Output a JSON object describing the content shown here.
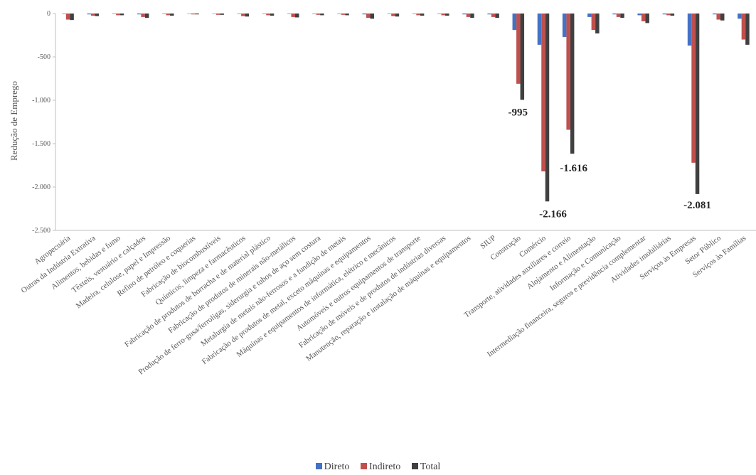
{
  "chart_data": {
    "type": "bar",
    "title": "",
    "xlabel": "",
    "ylabel": "Redução de Emprego",
    "ylim": [
      -2500,
      0
    ],
    "yticks": [
      0,
      -500,
      -1000,
      -1500,
      -2000,
      -2500
    ],
    "ytick_labels": [
      "0",
      "-500",
      "-1.000",
      "-1.500",
      "-2.000",
      "-2.500"
    ],
    "grid": false,
    "legend_position": "bottom",
    "categories": [
      "Agropecuária",
      "Outras da Indústria Extrativa",
      "Alimentos, bebidas e fumo",
      "Têxteis, vestuário e calçados",
      "Madeira, celulose, papel e Impressão",
      "Refino de petróleo e coquerias",
      "Fabricação de biocombustíveis",
      "Químicos, limpeza e farmacêuticos",
      "Fabricação de produtos de borracha e de material plástico",
      "Fabricação de produtos de minerais não-metálicos",
      "Produção de ferro-gusa/ferroligas, siderurgia e tubos de aço sem costura",
      "Metalurgia de metais não-ferrosos e a fundição de metais",
      "Fabricação de produtos de metal, exceto máquinas e equipamentos",
      "Máquinas e equipamentos de informática, elétrico e mecânicos",
      "Automóveis e outros equipamentos de transporte",
      "Fabricação de móveis e de produtos de indústrias diversas",
      "Manutenção, reparação e instalação de máquinas e equipamentos",
      "SIUP",
      "Construção",
      "Comércio",
      "Transporte, atividades auxiliares e correio",
      "Alojamento e Alimentação",
      "Informação e Comunicação",
      "Intermediação financeira, seguros e previdência complementar",
      "Atividades imobiliárias",
      "Serviços às Empresas",
      "Setor Público",
      "Serviços às Famílias"
    ],
    "series": [
      {
        "name": "Direto",
        "color": "#4472C4",
        "values": [
          -5,
          -10,
          -5,
          -10,
          -5,
          -3,
          -3,
          -5,
          -5,
          -5,
          -5,
          -5,
          -10,
          -5,
          -5,
          -5,
          -10,
          -10,
          -190,
          -360,
          -270,
          -40,
          -10,
          -20,
          -10,
          -370,
          -10,
          -60
        ]
      },
      {
        "name": "Indireto",
        "color": "#C0504D",
        "values": [
          -70,
          -25,
          -20,
          -40,
          -20,
          -10,
          -15,
          -30,
          -20,
          -40,
          -15,
          -15,
          -50,
          -30,
          -20,
          -20,
          -40,
          -40,
          -810,
          -1820,
          -1340,
          -190,
          -40,
          -90,
          -20,
          -1720,
          -70,
          -300
        ]
      },
      {
        "name": "Total",
        "color": "#404040",
        "values": [
          -75,
          -30,
          -20,
          -50,
          -25,
          -10,
          -15,
          -35,
          -25,
          -45,
          -20,
          -20,
          -60,
          -35,
          -25,
          -25,
          -50,
          -50,
          -995,
          -2166,
          -1616,
          -230,
          -50,
          -110,
          -25,
          -2081,
          -80,
          -360
        ]
      }
    ],
    "data_labels": [
      {
        "category_index": 18,
        "series": "Total",
        "text": "-995"
      },
      {
        "category_index": 19,
        "series": "Total",
        "text": "-2.166"
      },
      {
        "category_index": 20,
        "series": "Total",
        "text": "-1.616"
      },
      {
        "category_index": 25,
        "series": "Total",
        "text": "-2.081"
      }
    ]
  }
}
